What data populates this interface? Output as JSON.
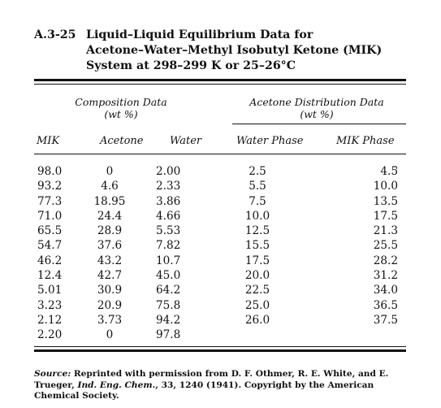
{
  "caption": {
    "number": "A.3-25",
    "line1": "Liquid–Liquid Equilibrium Data for",
    "line2": "Acetone–Water–Methyl Isobutyl Ketone (MIK)",
    "line3": "System at 298–299 K or 25–26°C"
  },
  "groups": {
    "composition_title": "Composition Data",
    "composition_unit": "(wt %)",
    "distribution_title": "Acetone Distribution Data",
    "distribution_unit": "(wt %)"
  },
  "columns": [
    "MIK",
    "Acetone",
    "Water",
    "Water Phase",
    "MIK Phase"
  ],
  "rows": [
    [
      "98.0",
      "0",
      "2.00",
      "2.5",
      "4.5"
    ],
    [
      "93.2",
      "4.6",
      "2.33",
      "5.5",
      "10.0"
    ],
    [
      "77.3",
      "18.95",
      "3.86",
      "7.5",
      "13.5"
    ],
    [
      "71.0",
      "24.4",
      "4.66",
      "10.0",
      "17.5"
    ],
    [
      "65.5",
      "28.9",
      "5.53",
      "12.5",
      "21.3"
    ],
    [
      "54.7",
      "37.6",
      "7.82",
      "15.5",
      "25.5"
    ],
    [
      "46.2",
      "43.2",
      "10.7",
      "17.5",
      "28.2"
    ],
    [
      "12.4",
      "42.7",
      "45.0",
      "20.0",
      "31.2"
    ],
    [
      "5.01",
      "30.9",
      "64.2",
      "22.5",
      "34.0"
    ],
    [
      "3.23",
      "20.9",
      "75.8",
      "25.0",
      "36.5"
    ],
    [
      "2.12",
      "3.73",
      "94.2",
      "26.0",
      "37.5"
    ],
    [
      "2.20",
      "0",
      "97.8",
      "",
      ""
    ]
  ],
  "stray_mark": "'",
  "source": {
    "label": "Source:",
    "text1": "Reprinted with permission from D. F. Othmer, R. E. White, and E. Trueger, ",
    "journal": "Ind. Eng. Chem.",
    "text2": ", 33, 1240 (1941). Copyright by the American Chemical Society."
  }
}
